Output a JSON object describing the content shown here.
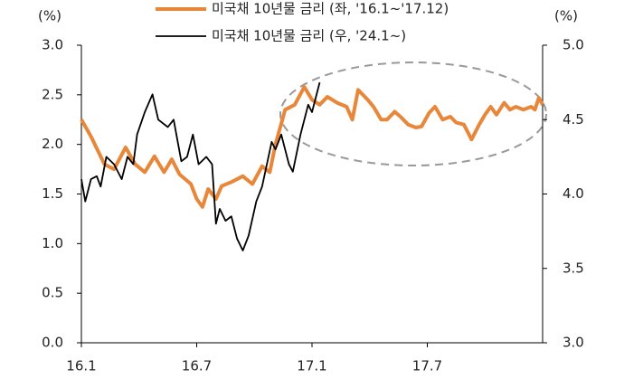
{
  "chart_data": {
    "type": "line",
    "xlim": [
      0,
      24
    ],
    "xticks": [
      {
        "value": 0,
        "label": "16.1"
      },
      {
        "value": 6,
        "label": "16.7"
      },
      {
        "value": 12,
        "label": "17.1"
      },
      {
        "value": 18,
        "label": "17.7"
      }
    ],
    "ylabel": "(%)",
    "y2label": "(%)",
    "ylim": [
      0,
      3
    ],
    "yticks": [
      {
        "value": 0,
        "label": "0.0"
      },
      0.5,
      {
        "value": 1,
        "label": "1.0"
      },
      1.5,
      {
        "value": 2,
        "label": "2.0"
      },
      2.5,
      {
        "value": 3,
        "label": "3.0"
      }
    ],
    "y2lim": [
      3,
      5
    ],
    "y2ticks": [
      {
        "value": 3,
        "label": "3.0"
      },
      3.5,
      {
        "value": 4,
        "label": "4.0"
      },
      4.5,
      {
        "value": 5,
        "label": "5.0"
      }
    ],
    "series": [
      {
        "name": "미국채 10년물 금리 (좌, '16.1~'17.12)",
        "color": "#e8873a",
        "axis": "y",
        "x": [
          0,
          0.5,
          1.2,
          1.7,
          2.3,
          2.8,
          3.3,
          3.8,
          4.3,
          4.7,
          5.1,
          5.7,
          6.0,
          6.3,
          6.6,
          7.0,
          7.3,
          7.8,
          8.4,
          8.9,
          9.4,
          9.8,
          10.1,
          10.6,
          11.1,
          11.6,
          12.0,
          12.4,
          12.8,
          13.3,
          13.8,
          14.1,
          14.4,
          14.9,
          15.2,
          15.6,
          15.9,
          16.3,
          16.6,
          17.0,
          17.4,
          17.7,
          18.1,
          18.4,
          18.8,
          19.2,
          19.5,
          19.9,
          20.3,
          20.7,
          21.0,
          21.3,
          21.6,
          22.0,
          22.3,
          22.6,
          23.0,
          23.4,
          23.6,
          23.8,
          24.0
        ],
        "values": [
          2.25,
          2.08,
          1.8,
          1.75,
          1.97,
          1.8,
          1.72,
          1.88,
          1.72,
          1.85,
          1.7,
          1.6,
          1.45,
          1.37,
          1.55,
          1.45,
          1.58,
          1.62,
          1.68,
          1.6,
          1.78,
          1.72,
          2.0,
          2.35,
          2.4,
          2.58,
          2.45,
          2.4,
          2.48,
          2.42,
          2.38,
          2.25,
          2.55,
          2.45,
          2.38,
          2.25,
          2.25,
          2.33,
          2.28,
          2.2,
          2.17,
          2.18,
          2.32,
          2.38,
          2.25,
          2.28,
          2.22,
          2.2,
          2.05,
          2.2,
          2.3,
          2.38,
          2.3,
          2.42,
          2.35,
          2.38,
          2.35,
          2.38,
          2.35,
          2.47,
          2.4
        ]
      },
      {
        "name": "미국채 10년물 금리 (우, '24.1~)",
        "color": "#000000",
        "axis": "y2",
        "x": [
          0,
          0.2,
          0.5,
          0.8,
          1.0,
          1.3,
          1.7,
          2.1,
          2.4,
          2.7,
          2.9,
          3.3,
          3.7,
          4.0,
          4.5,
          4.8,
          5.2,
          5.5,
          5.8,
          6.1,
          6.5,
          6.8,
          7.0,
          7.2,
          7.5,
          7.8,
          8.1,
          8.4,
          8.7,
          9.1,
          9.4,
          9.9,
          10.1,
          10.4,
          10.8,
          11.0,
          11.4,
          11.8,
          12.0,
          12.4
        ],
        "values": [
          4.1,
          3.95,
          4.1,
          4.12,
          4.05,
          4.25,
          4.2,
          4.1,
          4.25,
          4.2,
          4.4,
          4.55,
          4.67,
          4.5,
          4.45,
          4.5,
          4.22,
          4.25,
          4.4,
          4.2,
          4.25,
          4.2,
          3.8,
          3.9,
          3.82,
          3.85,
          3.7,
          3.62,
          3.72,
          3.95,
          4.05,
          4.35,
          4.3,
          4.4,
          4.2,
          4.15,
          4.4,
          4.6,
          4.55,
          4.75
        ]
      }
    ]
  }
}
